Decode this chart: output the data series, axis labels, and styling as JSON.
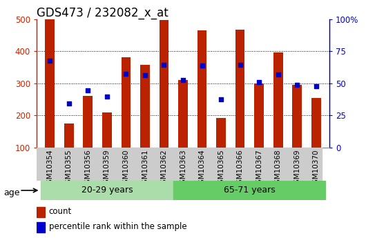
{
  "title": "GDS473 / 232082_x_at",
  "samples": [
    "GSM10354",
    "GSM10355",
    "GSM10356",
    "GSM10359",
    "GSM10360",
    "GSM10361",
    "GSM10362",
    "GSM10363",
    "GSM10364",
    "GSM10365",
    "GSM10366",
    "GSM10367",
    "GSM10368",
    "GSM10369",
    "GSM10370"
  ],
  "counts": [
    500,
    175,
    260,
    210,
    380,
    358,
    498,
    310,
    465,
    193,
    468,
    300,
    397,
    295,
    255
  ],
  "percentile_raw": [
    370,
    237,
    278,
    258,
    330,
    325,
    358,
    310,
    355,
    250,
    358,
    303,
    327,
    296,
    290
  ],
  "ylim": [
    100,
    500
  ],
  "yticks": [
    100,
    200,
    300,
    400,
    500
  ],
  "right_yticks": [
    0,
    25,
    50,
    75,
    100
  ],
  "bar_color": "#bb2200",
  "dot_color": "#0000cc",
  "group1_label": "20-29 years",
  "group2_label": "65-71 years",
  "group1_count": 7,
  "group2_count": 8,
  "group1_color": "#aaddaa",
  "group2_color": "#66cc66",
  "age_label": "age",
  "legend_count": "count",
  "legend_pct": "percentile rank within the sample",
  "title_fontsize": 12,
  "tick_color_left": "#cc2200",
  "tick_color_right": "#0000cc",
  "bar_width": 0.5,
  "xtick_bg": "#cccccc",
  "grid_color": "#000000",
  "spine_color": "#888888"
}
